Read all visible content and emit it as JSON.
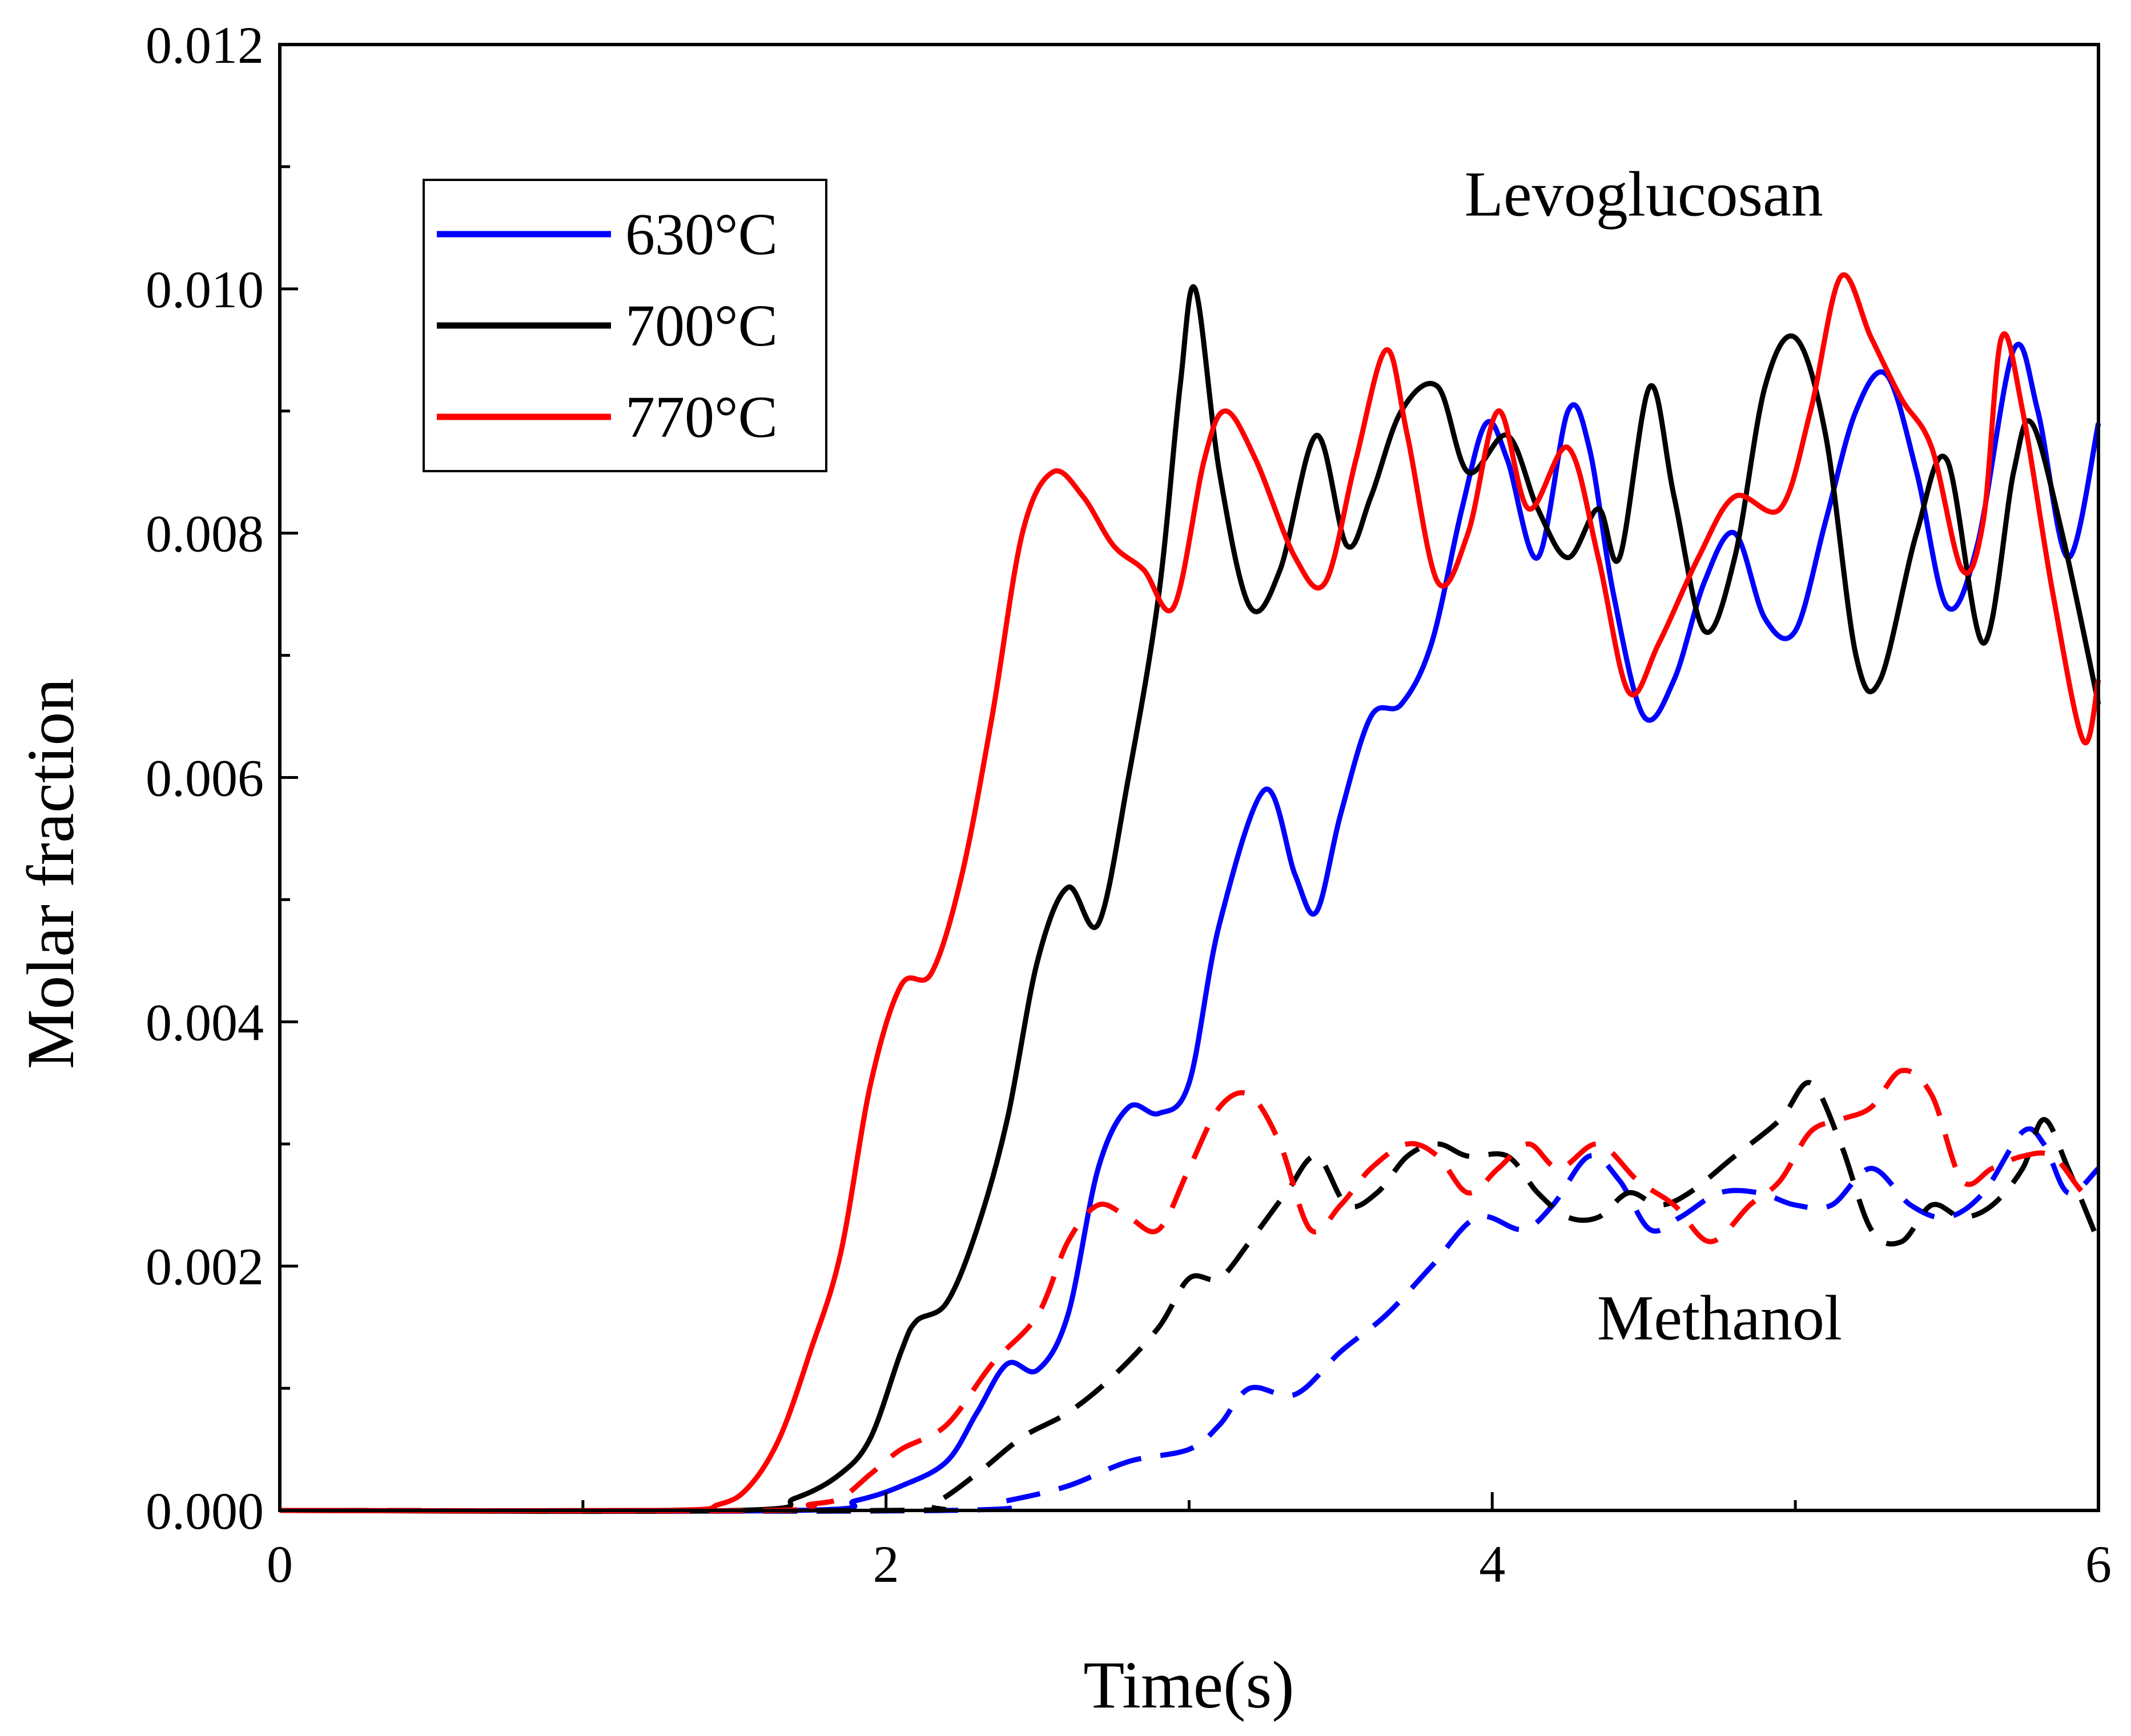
{
  "chart_data": {
    "type": "line",
    "title": "",
    "xlabel": "Time(s)",
    "ylabel": "Molar fraction",
    "xlim": [
      0,
      6
    ],
    "ylim": [
      0,
      0.012
    ],
    "x_ticks": [
      0,
      2,
      4,
      6
    ],
    "x_tick_labels": [
      "0",
      "2",
      "4",
      "6"
    ],
    "y_ticks": [
      0,
      0.002,
      0.004,
      0.006,
      0.008,
      0.01,
      0.012
    ],
    "y_tick_labels": [
      "0.000",
      "0.002",
      "0.004",
      "0.006",
      "0.008",
      "0.010",
      "0.012"
    ],
    "grid": false,
    "legend": {
      "position": "top-left",
      "entries": [
        {
          "label": "630°C",
          "color": "#0000ff"
        },
        {
          "label": "700°C",
          "color": "#000000"
        },
        {
          "label": "770°C",
          "color": "#ff0000"
        }
      ]
    },
    "annotations": [
      {
        "text": "Levoglucosan",
        "x": 4.5,
        "y": 0.0106
      },
      {
        "text": "Methanol",
        "x": 4.75,
        "y": 0.0014
      }
    ],
    "series": [
      {
        "name": "Levoglucosan 630°C",
        "color": "#0000ff",
        "dash": "solid",
        "points": [
          [
            0,
            0
          ],
          [
            1.7,
            0
          ],
          [
            1.9,
            8e-05
          ],
          [
            2.05,
            0.0002
          ],
          [
            2.2,
            0.0004
          ],
          [
            2.3,
            0.0008
          ],
          [
            2.4,
            0.0012
          ],
          [
            2.5,
            0.00115
          ],
          [
            2.6,
            0.0016
          ],
          [
            2.7,
            0.0028
          ],
          [
            2.8,
            0.0033
          ],
          [
            2.9,
            0.00325
          ],
          [
            3.0,
            0.0035
          ],
          [
            3.1,
            0.0048
          ],
          [
            3.25,
            0.0059
          ],
          [
            3.35,
            0.0052
          ],
          [
            3.42,
            0.0049
          ],
          [
            3.5,
            0.0057
          ],
          [
            3.6,
            0.0065
          ],
          [
            3.7,
            0.0066
          ],
          [
            3.8,
            0.0071
          ],
          [
            3.9,
            0.0082
          ],
          [
            3.98,
            0.0089
          ],
          [
            4.05,
            0.0086
          ],
          [
            4.15,
            0.0078
          ],
          [
            4.25,
            0.009
          ],
          [
            4.32,
            0.0087
          ],
          [
            4.4,
            0.0075
          ],
          [
            4.5,
            0.0065
          ],
          [
            4.6,
            0.0068
          ],
          [
            4.7,
            0.0076
          ],
          [
            4.8,
            0.008
          ],
          [
            4.9,
            0.0073
          ],
          [
            5.0,
            0.0072
          ],
          [
            5.1,
            0.0081
          ],
          [
            5.2,
            0.009
          ],
          [
            5.3,
            0.0093
          ],
          [
            5.4,
            0.0085
          ],
          [
            5.5,
            0.0074
          ],
          [
            5.6,
            0.0079
          ],
          [
            5.72,
            0.0095
          ],
          [
            5.8,
            0.009
          ],
          [
            5.9,
            0.0078
          ],
          [
            6.0,
            0.0089
          ]
        ]
      },
      {
        "name": "Levoglucosan 700°C",
        "color": "#000000",
        "dash": "solid",
        "points": [
          [
            0,
            0
          ],
          [
            1.5,
            0
          ],
          [
            1.7,
            0.0001
          ],
          [
            1.85,
            0.0003
          ],
          [
            1.95,
            0.0006
          ],
          [
            2.05,
            0.0013
          ],
          [
            2.1,
            0.00155
          ],
          [
            2.2,
            0.0017
          ],
          [
            2.3,
            0.0023
          ],
          [
            2.4,
            0.0032
          ],
          [
            2.5,
            0.0045
          ],
          [
            2.6,
            0.0051
          ],
          [
            2.7,
            0.0048
          ],
          [
            2.8,
            0.006
          ],
          [
            2.9,
            0.0075
          ],
          [
            2.97,
            0.0092
          ],
          [
            3.02,
            0.01
          ],
          [
            3.1,
            0.0085
          ],
          [
            3.2,
            0.0074
          ],
          [
            3.3,
            0.0077
          ],
          [
            3.42,
            0.0088
          ],
          [
            3.52,
            0.0079
          ],
          [
            3.6,
            0.0083
          ],
          [
            3.7,
            0.009
          ],
          [
            3.82,
            0.0092
          ],
          [
            3.92,
            0.0085
          ],
          [
            4.05,
            0.0088
          ],
          [
            4.15,
            0.0082
          ],
          [
            4.25,
            0.0078
          ],
          [
            4.35,
            0.0082
          ],
          [
            4.42,
            0.0078
          ],
          [
            4.52,
            0.0092
          ],
          [
            4.6,
            0.0083
          ],
          [
            4.7,
            0.0072
          ],
          [
            4.8,
            0.0078
          ],
          [
            4.9,
            0.0092
          ],
          [
            5.0,
            0.0096
          ],
          [
            5.1,
            0.0088
          ],
          [
            5.2,
            0.007
          ],
          [
            5.28,
            0.0068
          ],
          [
            5.4,
            0.008
          ],
          [
            5.5,
            0.0086
          ],
          [
            5.62,
            0.0071
          ],
          [
            5.72,
            0.0085
          ],
          [
            5.78,
            0.0089
          ],
          [
            5.88,
            0.008
          ],
          [
            6.0,
            0.0066
          ]
        ]
      },
      {
        "name": "Levoglucosan 770°C",
        "color": "#ff0000",
        "dash": "solid",
        "points": [
          [
            0,
            0
          ],
          [
            1.25,
            0
          ],
          [
            1.45,
            5e-05
          ],
          [
            1.55,
            0.0002
          ],
          [
            1.65,
            0.0006
          ],
          [
            1.75,
            0.0013
          ],
          [
            1.85,
            0.0021
          ],
          [
            1.95,
            0.0035
          ],
          [
            2.05,
            0.0043
          ],
          [
            2.15,
            0.0044
          ],
          [
            2.25,
            0.0052
          ],
          [
            2.35,
            0.0065
          ],
          [
            2.45,
            0.008
          ],
          [
            2.55,
            0.0085
          ],
          [
            2.65,
            0.0083
          ],
          [
            2.75,
            0.0079
          ],
          [
            2.85,
            0.0077
          ],
          [
            2.95,
            0.0074
          ],
          [
            3.05,
            0.0086
          ],
          [
            3.12,
            0.009
          ],
          [
            3.22,
            0.0086
          ],
          [
            3.35,
            0.0078
          ],
          [
            3.45,
            0.0076
          ],
          [
            3.55,
            0.0086
          ],
          [
            3.65,
            0.0095
          ],
          [
            3.72,
            0.0088
          ],
          [
            3.82,
            0.0076
          ],
          [
            3.92,
            0.008
          ],
          [
            4.02,
            0.009
          ],
          [
            4.12,
            0.0082
          ],
          [
            4.25,
            0.0087
          ],
          [
            4.35,
            0.0078
          ],
          [
            4.45,
            0.0067
          ],
          [
            4.55,
            0.0071
          ],
          [
            4.68,
            0.0078
          ],
          [
            4.8,
            0.0083
          ],
          [
            4.95,
            0.0082
          ],
          [
            5.05,
            0.009
          ],
          [
            5.15,
            0.0101
          ],
          [
            5.25,
            0.0096
          ],
          [
            5.35,
            0.0091
          ],
          [
            5.45,
            0.0087
          ],
          [
            5.55,
            0.0077
          ],
          [
            5.62,
            0.0081
          ],
          [
            5.68,
            0.0096
          ],
          [
            5.75,
            0.009
          ],
          [
            5.85,
            0.0075
          ],
          [
            5.95,
            0.0063
          ],
          [
            6.0,
            0.0068
          ]
        ]
      },
      {
        "name": "Methanol 630°C",
        "color": "#0000ff",
        "dash": "dashed",
        "points": [
          [
            0,
            0
          ],
          [
            2.2,
            0
          ],
          [
            2.4,
            8e-05
          ],
          [
            2.6,
            0.0002
          ],
          [
            2.8,
            0.0004
          ],
          [
            3.0,
            0.0005
          ],
          [
            3.1,
            0.0007
          ],
          [
            3.2,
            0.001
          ],
          [
            3.35,
            0.00095
          ],
          [
            3.5,
            0.0013
          ],
          [
            3.65,
            0.0016
          ],
          [
            3.8,
            0.002
          ],
          [
            3.95,
            0.0024
          ],
          [
            4.1,
            0.0023
          ],
          [
            4.2,
            0.0025
          ],
          [
            4.32,
            0.0029
          ],
          [
            4.42,
            0.0027
          ],
          [
            4.52,
            0.0023
          ],
          [
            4.62,
            0.0024
          ],
          [
            4.75,
            0.0026
          ],
          [
            4.88,
            0.0026
          ],
          [
            5.0,
            0.0025
          ],
          [
            5.12,
            0.0025
          ],
          [
            5.25,
            0.0028
          ],
          [
            5.38,
            0.0025
          ],
          [
            5.5,
            0.0024
          ],
          [
            5.62,
            0.0026
          ],
          [
            5.75,
            0.0031
          ],
          [
            5.82,
            0.003
          ],
          [
            5.9,
            0.0026
          ],
          [
            6.0,
            0.0028
          ]
        ]
      },
      {
        "name": "Methanol 700°C",
        "color": "#000000",
        "dash": "dashed",
        "points": [
          [
            0,
            0
          ],
          [
            2.0,
            0
          ],
          [
            2.15,
            5e-05
          ],
          [
            2.3,
            0.0003
          ],
          [
            2.45,
            0.0006
          ],
          [
            2.6,
            0.0008
          ],
          [
            2.75,
            0.0011
          ],
          [
            2.9,
            0.0015
          ],
          [
            3.0,
            0.0019
          ],
          [
            3.1,
            0.0019
          ],
          [
            3.2,
            0.0022
          ],
          [
            3.32,
            0.0026
          ],
          [
            3.42,
            0.0029
          ],
          [
            3.52,
            0.0025
          ],
          [
            3.62,
            0.0026
          ],
          [
            3.72,
            0.0029
          ],
          [
            3.82,
            0.003
          ],
          [
            3.92,
            0.0029
          ],
          [
            4.05,
            0.0029
          ],
          [
            4.15,
            0.0026
          ],
          [
            4.25,
            0.0024
          ],
          [
            4.35,
            0.0024
          ],
          [
            4.45,
            0.0026
          ],
          [
            4.55,
            0.0025
          ],
          [
            4.65,
            0.0026
          ],
          [
            4.8,
            0.0029
          ],
          [
            4.95,
            0.0032
          ],
          [
            5.05,
            0.0035
          ],
          [
            5.15,
            0.003
          ],
          [
            5.25,
            0.0023
          ],
          [
            5.35,
            0.0022
          ],
          [
            5.45,
            0.0025
          ],
          [
            5.55,
            0.0024
          ],
          [
            5.65,
            0.0025
          ],
          [
            5.75,
            0.0028
          ],
          [
            5.82,
            0.0032
          ],
          [
            5.9,
            0.0028
          ],
          [
            6.0,
            0.0022
          ]
        ]
      },
      {
        "name": "Methanol 770°C",
        "color": "#ff0000",
        "dash": "dashed",
        "points": [
          [
            0,
            0
          ],
          [
            1.6,
            0
          ],
          [
            1.75,
            5e-05
          ],
          [
            1.85,
            0.0001
          ],
          [
            1.95,
            0.0003
          ],
          [
            2.05,
            0.0005
          ],
          [
            2.2,
            0.0007
          ],
          [
            2.35,
            0.0012
          ],
          [
            2.5,
            0.0016
          ],
          [
            2.6,
            0.0022
          ],
          [
            2.7,
            0.0025
          ],
          [
            2.8,
            0.0024
          ],
          [
            2.9,
            0.0023
          ],
          [
            3.0,
            0.0028
          ],
          [
            3.1,
            0.0033
          ],
          [
            3.2,
            0.0034
          ],
          [
            3.3,
            0.003
          ],
          [
            3.4,
            0.0023
          ],
          [
            3.5,
            0.0025
          ],
          [
            3.6,
            0.0028
          ],
          [
            3.72,
            0.003
          ],
          [
            3.82,
            0.0029
          ],
          [
            3.92,
            0.0026
          ],
          [
            4.02,
            0.0028
          ],
          [
            4.12,
            0.003
          ],
          [
            4.22,
            0.0028
          ],
          [
            4.35,
            0.003
          ],
          [
            4.48,
            0.0027
          ],
          [
            4.6,
            0.0025
          ],
          [
            4.72,
            0.0022
          ],
          [
            4.85,
            0.0025
          ],
          [
            4.95,
            0.0027
          ],
          [
            5.05,
            0.0031
          ],
          [
            5.15,
            0.0032
          ],
          [
            5.25,
            0.0033
          ],
          [
            5.35,
            0.0036
          ],
          [
            5.45,
            0.0034
          ],
          [
            5.55,
            0.0027
          ],
          [
            5.65,
            0.0028
          ],
          [
            5.75,
            0.0029
          ],
          [
            5.85,
            0.0029
          ],
          [
            5.95,
            0.0026
          ],
          [
            6.0,
            0.0026
          ]
        ]
      }
    ]
  }
}
